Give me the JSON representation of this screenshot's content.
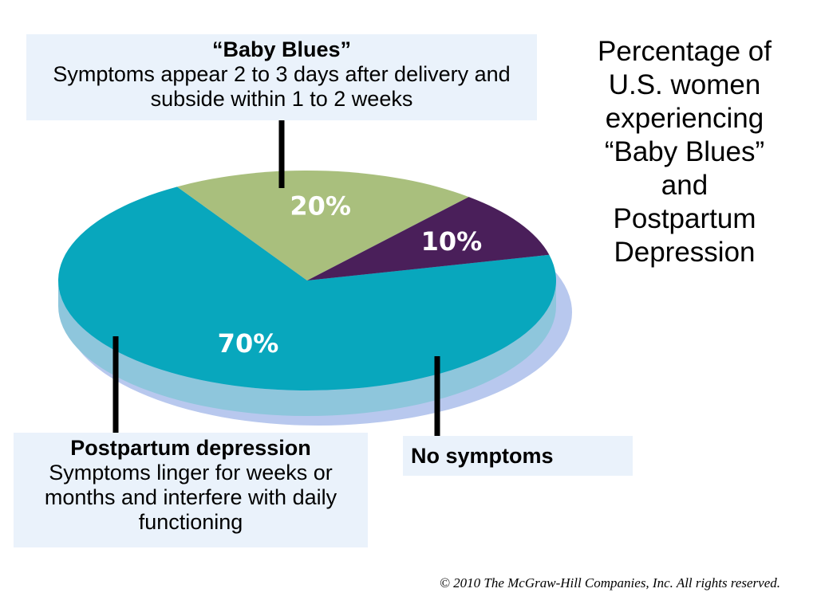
{
  "chart_data": {
    "type": "pie",
    "title": "Percentage of\nU.S. women\nexperiencing\n“Baby Blues”\nand\nPostpartum\nDepression",
    "slices": [
      {
        "label": "“Baby Blues”",
        "value": 70,
        "display": "70%",
        "color": "#08a7bd",
        "side_color": "#8ec6dc"
      },
      {
        "label": "No symptoms",
        "value": 20,
        "display": "20%",
        "color": "#a9bf7d",
        "side_color": "#dfe8b6"
      },
      {
        "label": "Postpartum depression",
        "value": 10,
        "display": "10%",
        "color": "#4a1f5a",
        "side_color": "#c794b8"
      }
    ]
  },
  "callouts": {
    "baby_blues": {
      "heading": "“Baby Blues”",
      "body": "Symptoms appear 2 to 3 days after delivery and subside within 1 to 2 weeks"
    },
    "postpartum": {
      "heading": "Postpartum depression",
      "body": "Symptoms linger for weeks or months and interfere with daily functioning"
    },
    "no_symptoms": {
      "heading": "No symptoms"
    }
  },
  "copyright": "© 2010 The McGraw-Hill Companies, Inc. All rights reserved.",
  "colors": {
    "callout_bg": "#eaf2fb",
    "rim": "#b8c8ee"
  }
}
